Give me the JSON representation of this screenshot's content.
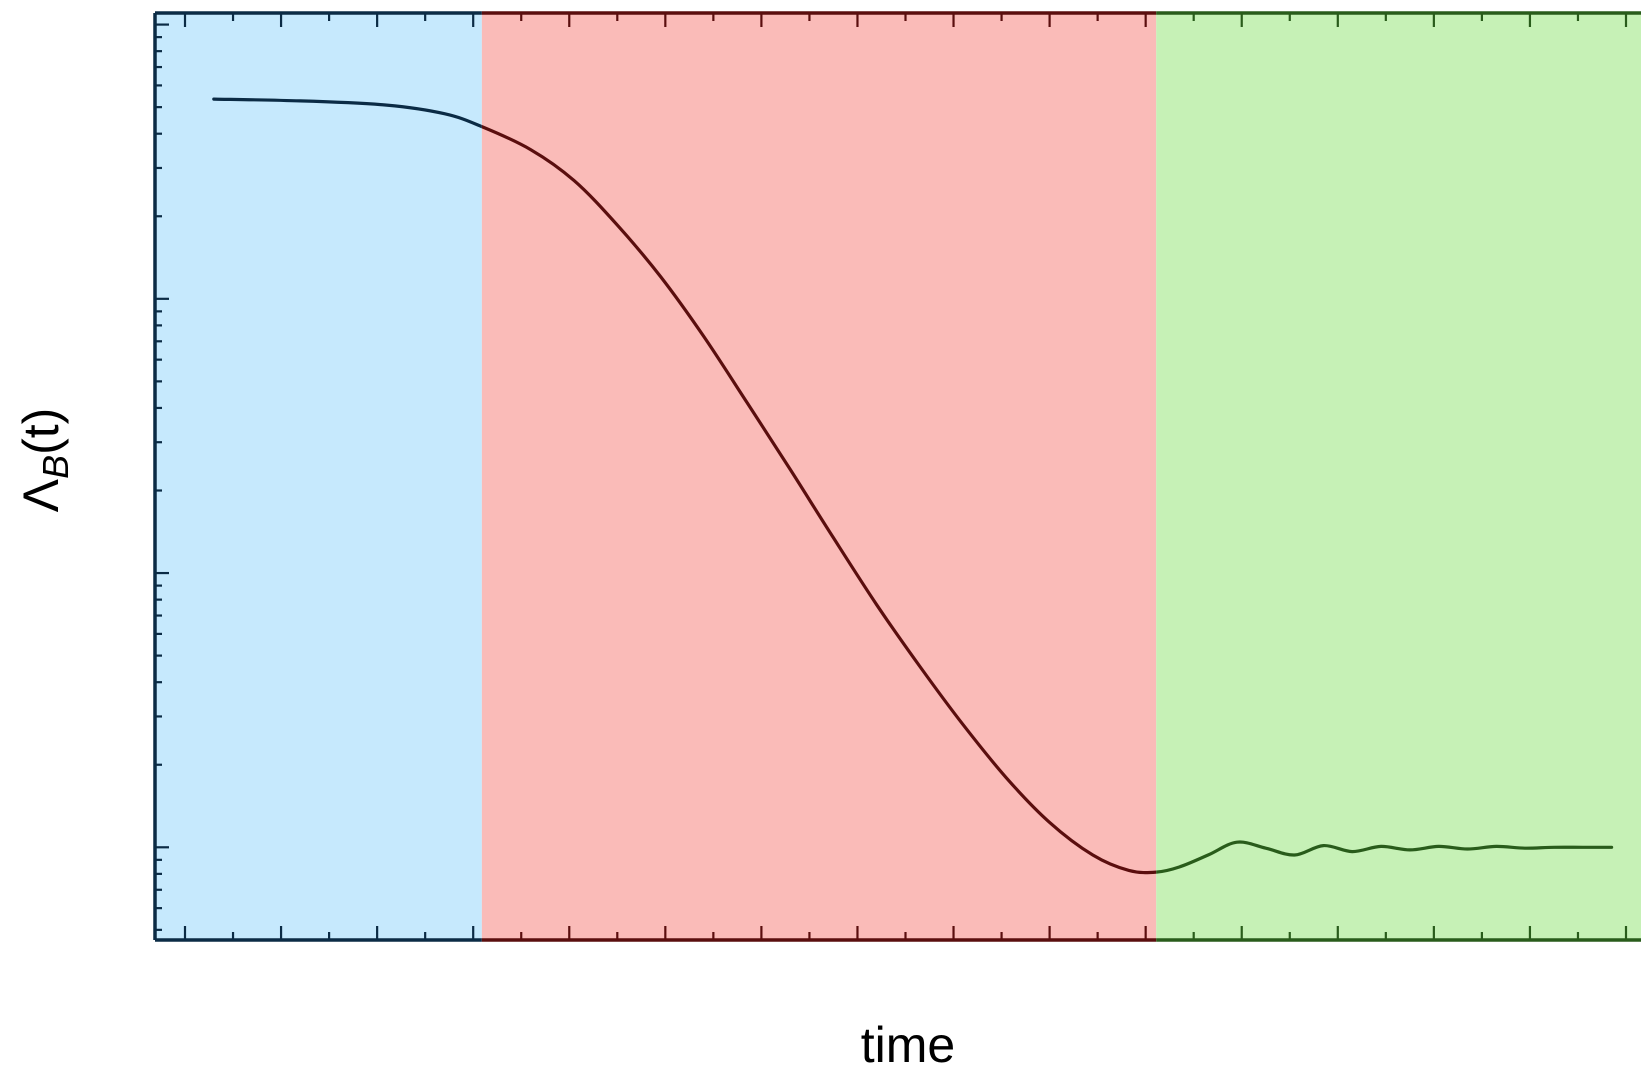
{
  "chart_data": {
    "type": "line",
    "title": "",
    "xlabel": "time",
    "ylabel": {
      "main": "Λ",
      "sub": "B",
      "suffix": "(t)"
    },
    "xlim": [
      0,
      1
    ],
    "ylim": [
      0,
      1
    ],
    "log_y": true,
    "grid": false,
    "legend": "none",
    "tick_labels_shown": false,
    "regions": [
      {
        "x0": 0.0,
        "x1": 0.206,
        "fill": "#c6e9fd",
        "axis_color": "#0b2b45"
      },
      {
        "x0": 0.206,
        "x1": 0.674,
        "fill": "#fabbb8",
        "axis_color": "#5a0e0e"
      },
      {
        "x0": 0.674,
        "x1": 1.0,
        "fill": "#c6f1b6",
        "axis_color": "#295c1b"
      }
    ],
    "series": [
      {
        "color": "#2a0f0f",
        "x": [
          0.02,
          0.08,
          0.14,
          0.18,
          0.206,
          0.24,
          0.27,
          0.3,
          0.33,
          0.36,
          0.39,
          0.42,
          0.45,
          0.48,
          0.51,
          0.54,
          0.57,
          0.6,
          0.63,
          0.655,
          0.674,
          0.69,
          0.71,
          0.73,
          0.75,
          0.77,
          0.79,
          0.81,
          0.83,
          0.85,
          0.87,
          0.89,
          0.91,
          0.93,
          0.95,
          0.97,
          0.99
        ],
        "y": [
          0.952,
          0.95,
          0.945,
          0.935,
          0.92,
          0.893,
          0.857,
          0.805,
          0.745,
          0.675,
          0.598,
          0.52,
          0.44,
          0.362,
          0.29,
          0.222,
          0.16,
          0.108,
          0.07,
          0.052,
          0.05,
          0.056,
          0.07,
          0.085,
          0.078,
          0.07,
          0.081,
          0.074,
          0.08,
          0.076,
          0.08,
          0.077,
          0.08,
          0.078,
          0.079,
          0.079,
          0.079
        ]
      }
    ]
  }
}
